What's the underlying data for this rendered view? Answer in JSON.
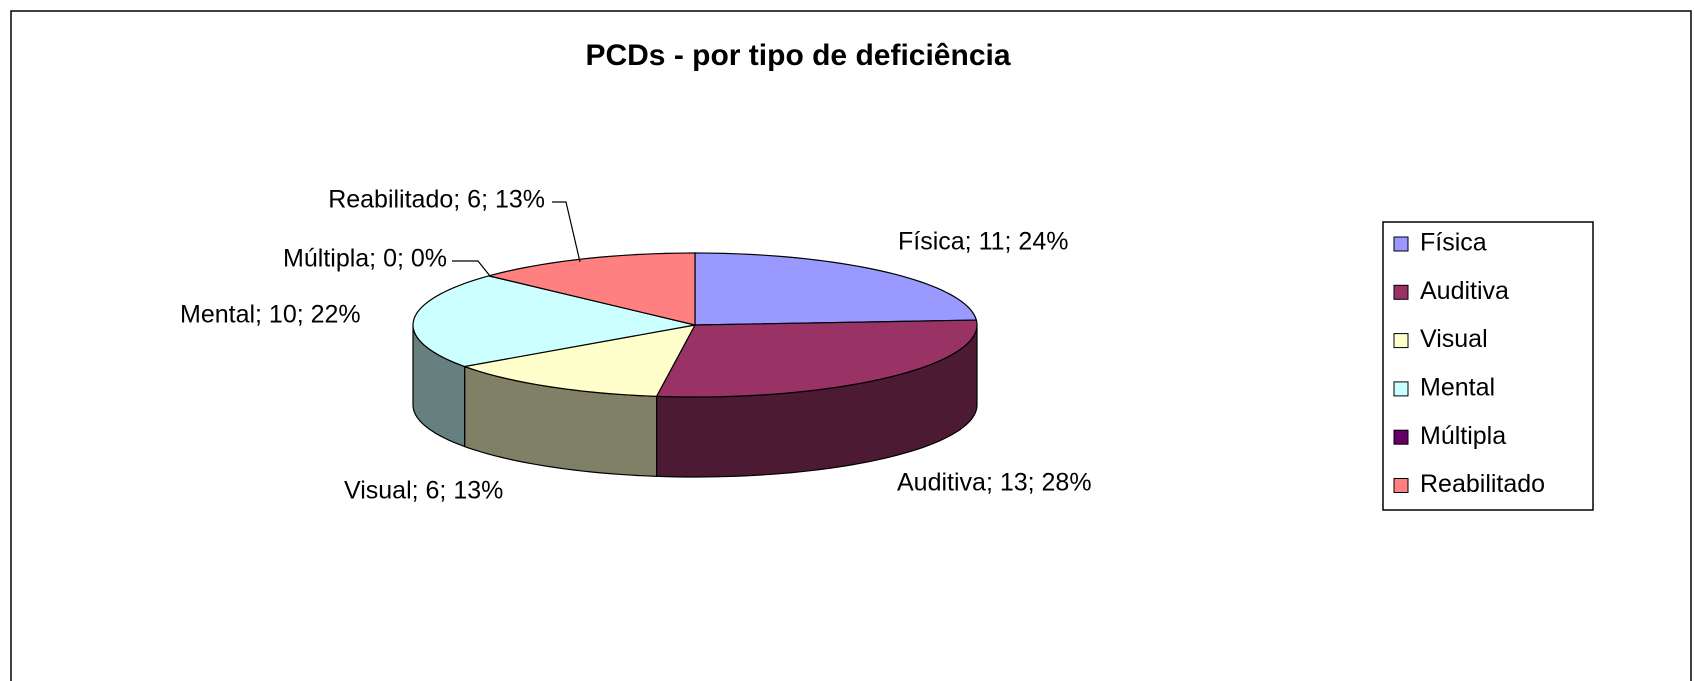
{
  "chart_data": {
    "type": "pie3d",
    "title": "PCDs - por tipo de deficiência",
    "categories": [
      "Física",
      "Auditiva",
      "Visual",
      "Mental",
      "Múltipla",
      "Reabilitado"
    ],
    "series": [
      {
        "name": "PCDs",
        "values": [
          11,
          13,
          6,
          10,
          0,
          6
        ],
        "value_labels": [
          "Física; 11; 24%",
          "Auditiva; 13; 28%",
          "Visual; 6; 13%",
          "Mental; 10; 22%",
          "Múltipla; 0; 0%",
          "Reabilitado; 6; 13%"
        ]
      }
    ],
    "colors": [
      "#9999ff",
      "#993366",
      "#ffffcc",
      "#ccffff",
      "#660066",
      "#ff8080"
    ],
    "legend": "right"
  }
}
